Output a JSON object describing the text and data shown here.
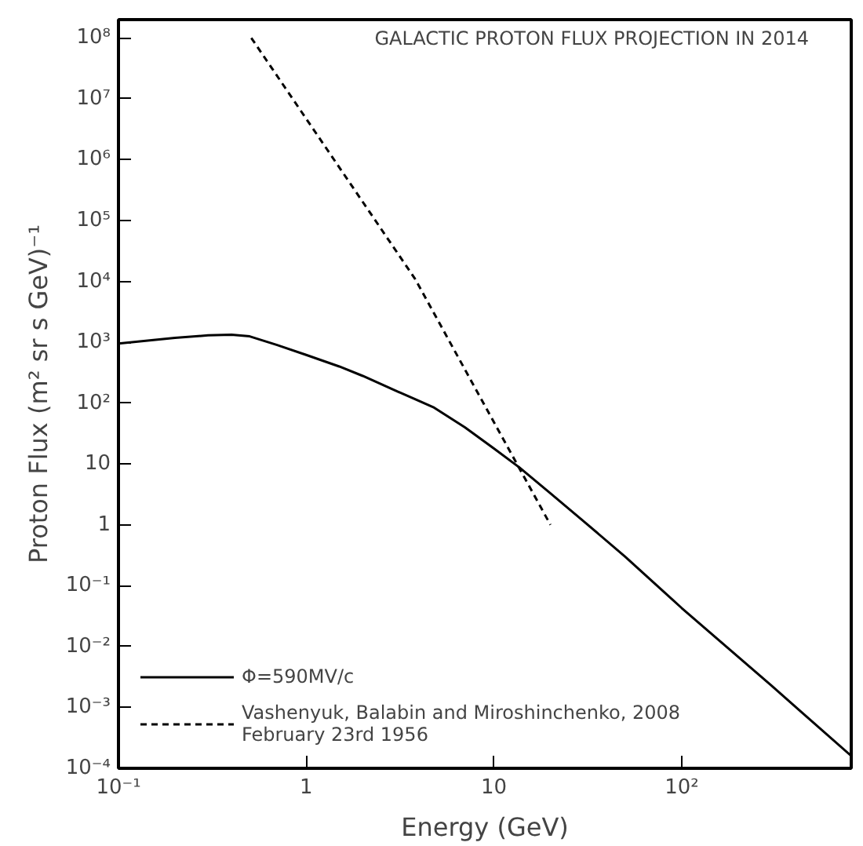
{
  "chart_data": {
    "type": "line",
    "title": "GALACTIC PROTON FLUX PROJECTION IN 2014",
    "xlabel": "Energy (GeV)",
    "ylabel": "Proton Flux (m² sr s GeV)⁻¹",
    "log": "xy",
    "grid": false,
    "legend": "bottom left",
    "marker": "none",
    "xlim": [
      0.1,
      800
    ],
    "ylim": [
      0.0001,
      200000000
    ],
    "xticks": [
      {
        "value": 0.1,
        "label": "10⁻¹"
      },
      1,
      10,
      {
        "value": 100,
        "label": "10²"
      }
    ],
    "yticks": [
      {
        "value": 0.0001,
        "label": "10⁻⁴"
      },
      {
        "value": 0.001,
        "label": "10⁻³"
      },
      {
        "value": 0.01,
        "label": "10⁻²"
      },
      {
        "value": 0.1,
        "label": "10⁻¹"
      },
      1,
      10,
      {
        "value": 100,
        "label": "10²"
      },
      {
        "value": 1000,
        "label": "10³"
      },
      {
        "value": 10000,
        "label": "10⁴"
      },
      {
        "value": 100000,
        "label": "10⁵"
      },
      {
        "value": 1000000,
        "label": "10⁶"
      },
      {
        "value": 10000000,
        "label": "10⁷"
      },
      {
        "value": 100000000,
        "label": "10⁸"
      }
    ],
    "series": [
      {
        "name": "Φ=590MV/c",
        "color": "#000000",
        "line_style": "solid",
        "x": [
          0.1,
          0.15,
          0.2,
          0.3,
          0.4,
          0.5,
          0.7,
          1,
          1.5,
          2,
          3,
          4.75,
          7,
          10,
          13.7,
          20,
          30,
          50,
          100,
          300,
          800
        ],
        "values": [
          950,
          1080,
          1180,
          1300,
          1330,
          1250,
          900,
          620,
          400,
          280,
          160,
          86,
          40,
          18,
          8.7,
          3.3,
          1.15,
          0.3,
          0.043,
          0.0023,
          0.00016
        ]
      },
      {
        "name": "Vashenyuk, Balabin and Miroshinchenko, 2008\nFebruary 23rd 1956",
        "color": "#000000",
        "line_style": "dashed",
        "x": [
          0.51,
          3.8,
          20
        ],
        "values": [
          100000000,
          11000,
          1
        ]
      }
    ]
  }
}
